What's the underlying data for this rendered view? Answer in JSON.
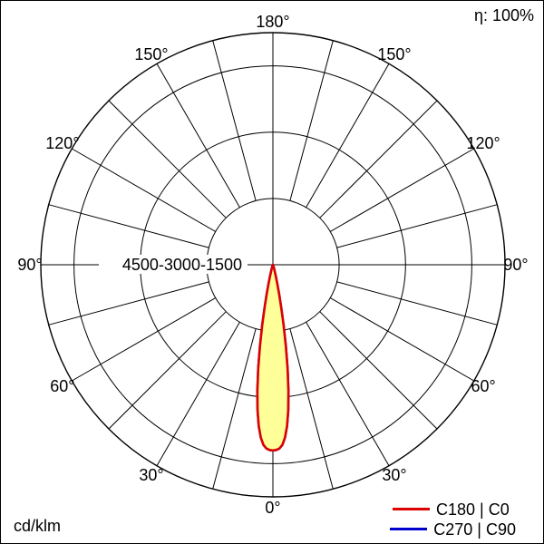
{
  "header": {
    "efficiency": "η: 100%"
  },
  "footer": {
    "unit": "cd/klm"
  },
  "legend": {
    "items": [
      {
        "label": "C180 | C0",
        "color": "#dd0000"
      },
      {
        "label": "C270 | C90",
        "color": "#0000cc"
      }
    ]
  },
  "chart_data": {
    "type": "polar",
    "subtype": "luminous-intensity-distribution",
    "unit": "cd/klm",
    "efficiency": "η: 100%",
    "angle_labels": [
      "0°",
      "30°",
      "60°",
      "90°",
      "120°",
      "150°",
      "180°"
    ],
    "spoke_step_deg": 15,
    "rings_cd": [
      1500,
      3000,
      4500
    ],
    "ring_axis_label": "4500-3000-1500",
    "r_axis_max": 5250,
    "grid": true,
    "legend_position": "bottom-right",
    "series": [
      {
        "name": "C270 | C90",
        "color": "#0000cc",
        "fill": "#ffff99",
        "gamma_deg": [
          0,
          1,
          2,
          3,
          4,
          5,
          6,
          7,
          8,
          9,
          10,
          11,
          12,
          13,
          14,
          16,
          18,
          20,
          25,
          30,
          45,
          60,
          90,
          120,
          150,
          180
        ],
        "cd_per_klm": [
          4200,
          4190,
          4160,
          4080,
          3920,
          3660,
          3310,
          2870,
          2380,
          1870,
          1390,
          980,
          660,
          430,
          270,
          110,
          50,
          25,
          8,
          3,
          1,
          0,
          0,
          0,
          0,
          0
        ]
      },
      {
        "name": "C180 | C0",
        "color": "#dd0000",
        "fill": "#ffff99",
        "gamma_deg": [
          0,
          1,
          2,
          3,
          4,
          5,
          6,
          7,
          8,
          9,
          10,
          11,
          12,
          13,
          14,
          16,
          18,
          20,
          25,
          30,
          45,
          60,
          90,
          120,
          150,
          180
        ],
        "cd_per_klm": [
          4200,
          4190,
          4160,
          4080,
          3920,
          3660,
          3310,
          2870,
          2380,
          1870,
          1390,
          980,
          660,
          430,
          270,
          110,
          50,
          25,
          8,
          3,
          1,
          0,
          0,
          0,
          0,
          0
        ]
      }
    ]
  }
}
